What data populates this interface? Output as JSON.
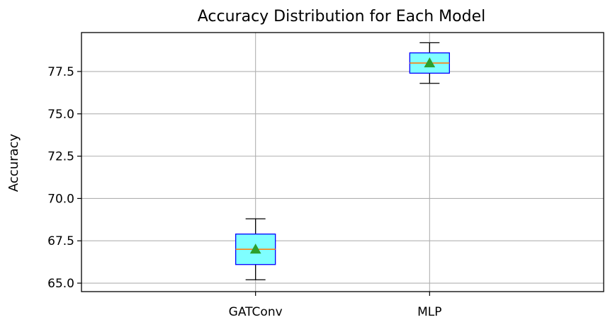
{
  "chart_data": {
    "type": "box",
    "title": "Accuracy Distribution for Each Model",
    "xlabel": "",
    "ylabel": "Accuracy",
    "ylim": [
      64.5,
      79.8
    ],
    "yticks": [
      "65.0",
      "67.5",
      "70.0",
      "72.5",
      "75.0",
      "77.5"
    ],
    "ytick_values": [
      65.0,
      67.5,
      70.0,
      72.5,
      75.0,
      77.5
    ],
    "grid": true,
    "categories": [
      "GATConv",
      "MLP"
    ],
    "boxes": [
      {
        "whisker_low": 65.2,
        "q1": 66.1,
        "median": 67.0,
        "mean": 67.0,
        "q3": 67.9,
        "whisker_high": 68.8
      },
      {
        "whisker_low": 76.8,
        "q1": 77.4,
        "median": 78.0,
        "mean": 78.0,
        "q3": 78.6,
        "whisker_high": 79.2
      }
    ],
    "colors": {
      "box_fill": "#7fffff",
      "box_edge": "#0000ff",
      "median": "#ff7f0e",
      "mean_marker": "#2ca02c",
      "grid": "#b0b0b0"
    }
  }
}
